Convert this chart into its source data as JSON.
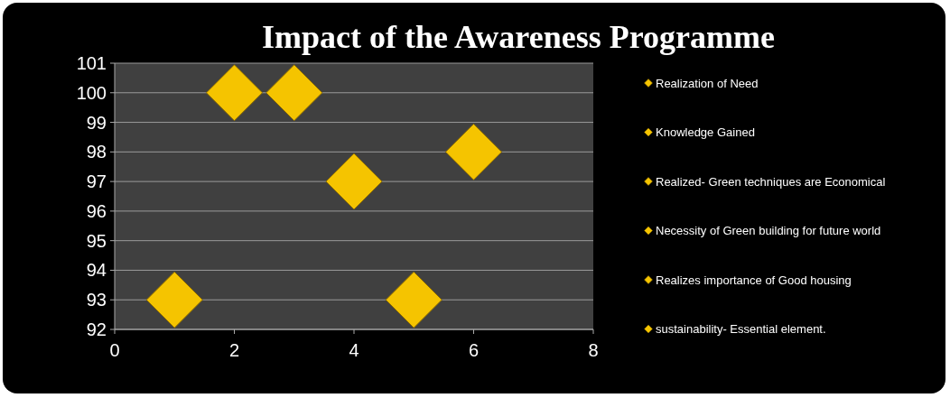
{
  "chart_data": {
    "type": "scatter",
    "title": "Impact of the Awareness Programme",
    "marker": "diamond",
    "grid": "y",
    "legend": "right",
    "xlim": [
      0,
      8
    ],
    "xticks": [
      0,
      2,
      4,
      6,
      8
    ],
    "ylim": [
      92,
      101
    ],
    "yticks": [
      92,
      93,
      94,
      95,
      96,
      97,
      98,
      99,
      100,
      101
    ],
    "series": [
      {
        "name": "Realization of Need",
        "color": "#f5c400",
        "x": [
          1
        ],
        "values": [
          93
        ]
      },
      {
        "name": "Knowledge Gained",
        "color": "#f5c400",
        "x": [
          2
        ],
        "values": [
          100
        ]
      },
      {
        "name": "Realized- Green techniques are Economical",
        "color": "#f5c400",
        "x": [
          3
        ],
        "values": [
          100
        ]
      },
      {
        "name": "Necessity of Green building for future world",
        "color": "#f5c400",
        "x": [
          4
        ],
        "values": [
          97
        ]
      },
      {
        "name": "Realizes importance of Good housing",
        "color": "#f5c400",
        "x": [
          5
        ],
        "values": [
          93
        ]
      },
      {
        "name": "sustainability- Essential element.",
        "color": "#f5c400",
        "x": [
          6
        ],
        "values": [
          98
        ]
      }
    ]
  }
}
